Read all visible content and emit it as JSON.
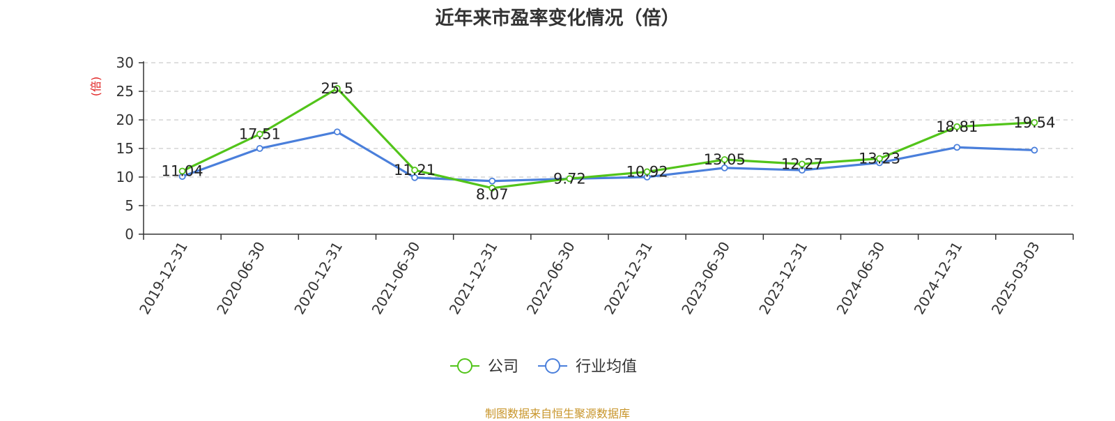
{
  "chart_data": {
    "type": "line",
    "title": "近年来市盈率变化情况（倍）",
    "ylabel": "(倍)",
    "ylim": [
      0,
      30
    ],
    "yticks": [
      0,
      5,
      10,
      15,
      20,
      25,
      30
    ],
    "grid": true,
    "legend_position": "bottom-center",
    "categories": [
      "2019-12-31",
      "2020-06-30",
      "2020-12-31",
      "2021-06-30",
      "2021-12-31",
      "2022-06-30",
      "2022-12-31",
      "2023-06-30",
      "2023-12-31",
      "2024-06-30",
      "2024-12-31",
      "2025-03-03"
    ],
    "series": [
      {
        "name": "公司",
        "color": "#52c41a",
        "values": [
          11.04,
          17.51,
          25.5,
          11.21,
          8.07,
          9.72,
          10.92,
          13.05,
          12.27,
          13.23,
          18.81,
          19.54
        ],
        "value_labels": [
          "11.04",
          "17.51",
          "25.5",
          "11.21",
          "8.07",
          "9.72",
          "10.92",
          "13.05",
          "12.27",
          "13.23",
          "18.81",
          "19.54"
        ]
      },
      {
        "name": "行业均值",
        "color": "#4a7fdb",
        "values": [
          10.1,
          15.0,
          17.9,
          9.9,
          9.3,
          9.7,
          10.0,
          11.6,
          11.2,
          12.5,
          15.2,
          14.7
        ]
      }
    ]
  },
  "source_note": "制图数据来自恒生聚源数据库",
  "colors": {
    "unit_label": "#e02020",
    "grid": "#cccccc",
    "axis": "#333333"
  }
}
